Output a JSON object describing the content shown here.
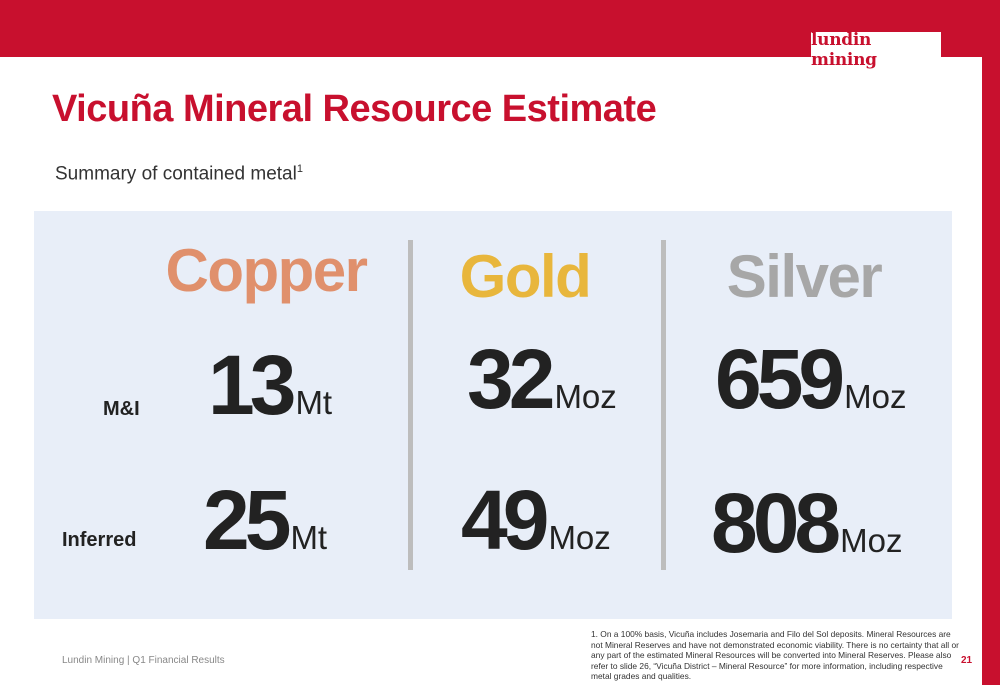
{
  "brand": {
    "logo_text": "lundin mining",
    "accent_color": "#c8102e"
  },
  "slide": {
    "title": "Vicuña Mineral Resource Estimate",
    "subtitle": "Summary of contained metal",
    "subtitle_sup": "1"
  },
  "metals": [
    {
      "name": "Copper",
      "color": "#e0906c"
    },
    {
      "name": "Gold",
      "color": "#e8b63c"
    },
    {
      "name": "Silver",
      "color": "#a7a7a7"
    }
  ],
  "rows": [
    {
      "label": "M&I"
    },
    {
      "label": "Inferred"
    }
  ],
  "values": {
    "mi": [
      {
        "num": "13",
        "unit": "Mt"
      },
      {
        "num": "32",
        "unit": "Moz"
      },
      {
        "num": "659",
        "unit": "Moz"
      }
    ],
    "inferred": [
      {
        "num": "25",
        "unit": "Mt"
      },
      {
        "num": "49",
        "unit": "Moz"
      },
      {
        "num": "808",
        "unit": "Moz"
      }
    ]
  },
  "footer": {
    "left": "Lundin Mining | Q1 Financial Results",
    "footnote": "1. On a 100% basis, Vicuña includes Josemaria and Filo del Sol deposits. Mineral Resources are not Mineral Reserves and have not demonstrated economic viability. There is no certainty that all or any part of the estimated Mineral Resources will be converted into Mineral Reserves. Please also refer to slide 26, “Vicuña District – Mineral Resource” for more information, including respective metal grades and qualities.",
    "page_number": "21"
  }
}
